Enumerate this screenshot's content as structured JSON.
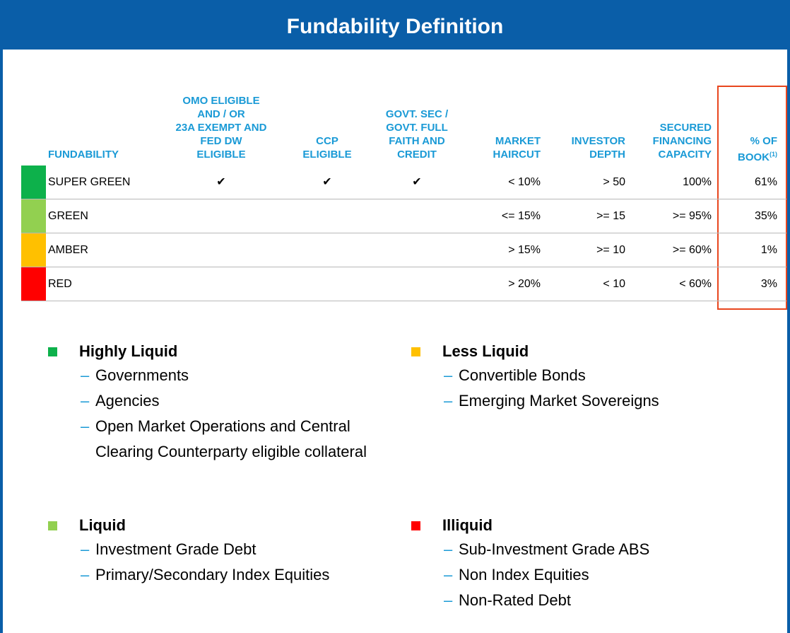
{
  "header": {
    "title": "Fundability Definition"
  },
  "table": {
    "columns": [
      {
        "lines": [
          "FUNDABILITY"
        ]
      },
      {
        "lines": [
          "OMO ELIGIBLE",
          "AND / OR",
          "23A EXEMPT AND",
          "FED DW",
          "ELIGIBLE"
        ]
      },
      {
        "lines": [
          "CCP",
          "ELIGIBLE"
        ]
      },
      {
        "lines": [
          "GOVT. SEC /",
          "GOVT. FULL",
          "FAITH AND",
          "CREDIT"
        ]
      },
      {
        "lines": [
          "MARKET",
          "HAIRCUT"
        ]
      },
      {
        "lines": [
          "INVESTOR",
          "DEPTH"
        ]
      },
      {
        "lines": [
          "SECURED",
          "FINANCING",
          "CAPACITY"
        ]
      },
      {
        "lines": [
          "% OF",
          "BOOK"
        ],
        "sup": "(1)"
      }
    ],
    "rows": [
      {
        "color": "#0db14b",
        "cells": [
          "SUPER GREEN",
          "✔",
          "✔",
          "✔",
          "< 10%",
          "> 50",
          "100%",
          "61%"
        ]
      },
      {
        "color": "#92d050",
        "cells": [
          "GREEN",
          null,
          null,
          null,
          "<= 15%",
          ">= 15",
          ">= 95%",
          "35%"
        ]
      },
      {
        "color": "#ffc000",
        "cells": [
          "AMBER",
          null,
          null,
          null,
          "> 15%",
          ">= 10",
          ">= 60%",
          "1%"
        ]
      },
      {
        "color": "#ff0000",
        "cells": [
          "RED",
          null,
          null,
          null,
          "> 20%",
          "< 10",
          "< 60%",
          "3%"
        ]
      }
    ]
  },
  "groups": [
    {
      "name": "Highly Liquid",
      "color": "#0db14b",
      "items": [
        "Governments",
        "Agencies",
        "Open Market Operations and Central Clearing Counterparty eligible collateral"
      ]
    },
    {
      "name": "Less Liquid",
      "color": "#ffc000",
      "items": [
        "Convertible Bonds",
        "Emerging Market Sovereigns"
      ]
    },
    {
      "name": "Liquid",
      "color": "#92d050",
      "items": [
        "Investment Grade Debt",
        "Primary/Secondary Index Equities"
      ]
    },
    {
      "name": "Illiquid",
      "color": "#ff0000",
      "items": [
        "Sub-Investment Grade ABS",
        "Non Index Equities",
        "Non-Rated Debt"
      ]
    }
  ]
}
